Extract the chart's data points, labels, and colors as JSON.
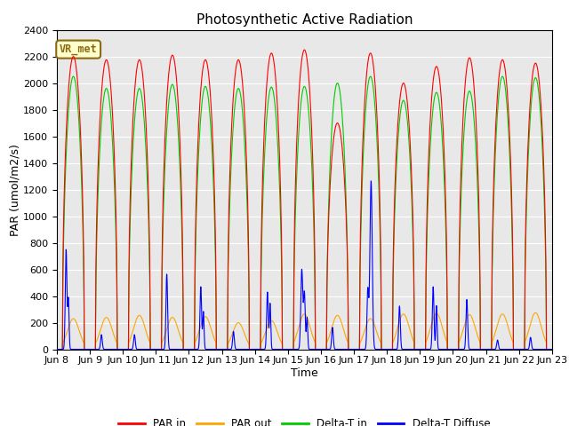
{
  "title": "Photosynthetic Active Radiation",
  "xlabel": "Time",
  "ylabel": "PAR (umol/m2/s)",
  "ylim": [
    0,
    2400
  ],
  "x_tick_labels": [
    "Jun 8",
    "Jun 9",
    "Jun 10",
    "Jun 11",
    "Jun 12",
    "Jun 13",
    "Jun 14",
    "Jun 15",
    "Jun 16",
    "Jun 17",
    "Jun 18",
    "Jun 19",
    "Jun 20",
    "Jun 21",
    "Jun 22",
    "Jun 23"
  ],
  "legend_entries": [
    "PAR in",
    "PAR out",
    "Delta-T in",
    "Delta-T Diffuse"
  ],
  "legend_colors": [
    "#ff0000",
    "#ffa500",
    "#00cc00",
    "#0000ff"
  ],
  "par_in_color": "#ff0000",
  "par_out_color": "#ffa500",
  "delta_t_in_color": "#00cc00",
  "delta_t_diffuse_color": "#0000ff",
  "annotation_text": "VR_met",
  "annotation_bg": "#ffffcc",
  "annotation_border": "#8b6914",
  "bg_color": "#e8e8e8",
  "title_fontsize": 11,
  "axis_fontsize": 9,
  "grid_color": "#ffffff",
  "num_days": 15,
  "peak_par_in": [
    2200,
    2175,
    2175,
    2210,
    2175,
    2175,
    2225,
    2250,
    1700,
    2225,
    2000,
    2125,
    2190,
    2175,
    2150
  ],
  "peak_par_out": [
    230,
    240,
    255,
    240,
    245,
    200,
    215,
    265,
    255,
    230,
    265,
    270,
    260,
    265,
    275
  ],
  "peak_delta_t_in": [
    2050,
    1960,
    1960,
    1990,
    1975,
    1960,
    1970,
    1975,
    2000,
    2050,
    1870,
    1930,
    1940,
    2050,
    2040
  ],
  "peak_delta_t_diffuse": [
    750,
    110,
    110,
    565,
    470,
    135,
    430,
    600,
    165,
    1265,
    325,
    470,
    375,
    70,
    90
  ]
}
